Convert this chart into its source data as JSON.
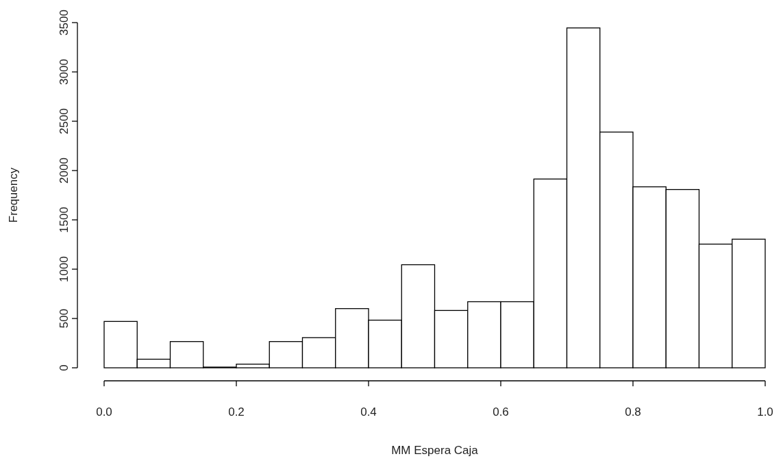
{
  "chart_data": {
    "type": "histogram",
    "xlabel": "MM Espera Caja",
    "ylabel": "Frequency",
    "bins": [
      0,
      0.05,
      0.1,
      0.15,
      0.2,
      0.25,
      0.3,
      0.35,
      0.4,
      0.45,
      0.5,
      0.55,
      0.6,
      0.65,
      0.7,
      0.75,
      0.8,
      0.85,
      0.9,
      0.95,
      1.0
    ],
    "values": [
      470,
      87,
      266,
      7,
      37,
      266,
      306,
      600,
      483,
      1045,
      581,
      670,
      670,
      1914,
      3446,
      2390,
      1835,
      1808,
      1254,
      1304
    ],
    "color": "#ffffff",
    "xlim": [
      0,
      1
    ],
    "xticks": [
      {
        "value": 0,
        "label": "0.0"
      },
      0.2,
      0.4,
      0.6,
      0.8,
      {
        "value": 1,
        "label": "1.0"
      }
    ],
    "ylim": [
      0,
      3500
    ],
    "yticks": [
      0,
      500,
      1000,
      1500,
      2000,
      2500,
      3000,
      3500
    ]
  }
}
